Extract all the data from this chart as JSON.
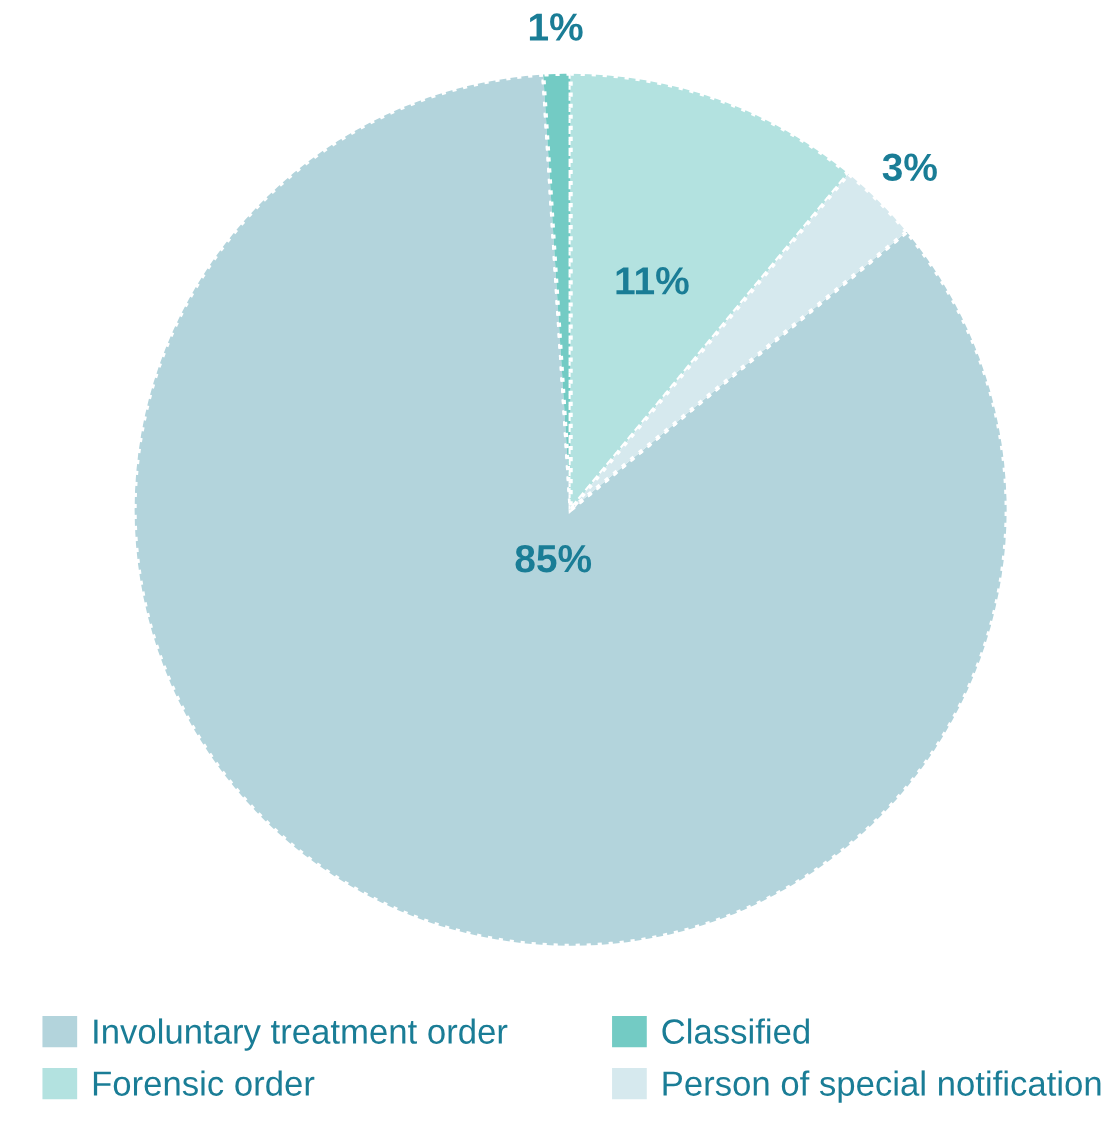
{
  "chart_data": {
    "type": "pie",
    "categories": [
      "Involuntary treatment order",
      "Classified",
      "Forensic order",
      "Person of special notification"
    ],
    "values": [
      85,
      1,
      11,
      3
    ],
    "value_labels": [
      "85%",
      "1%",
      "11%",
      "3%"
    ],
    "colors": [
      "#b3d4dc",
      "#73cbc4",
      "#b3e2e0",
      "#d6e9ee"
    ],
    "legend": "bottom"
  }
}
